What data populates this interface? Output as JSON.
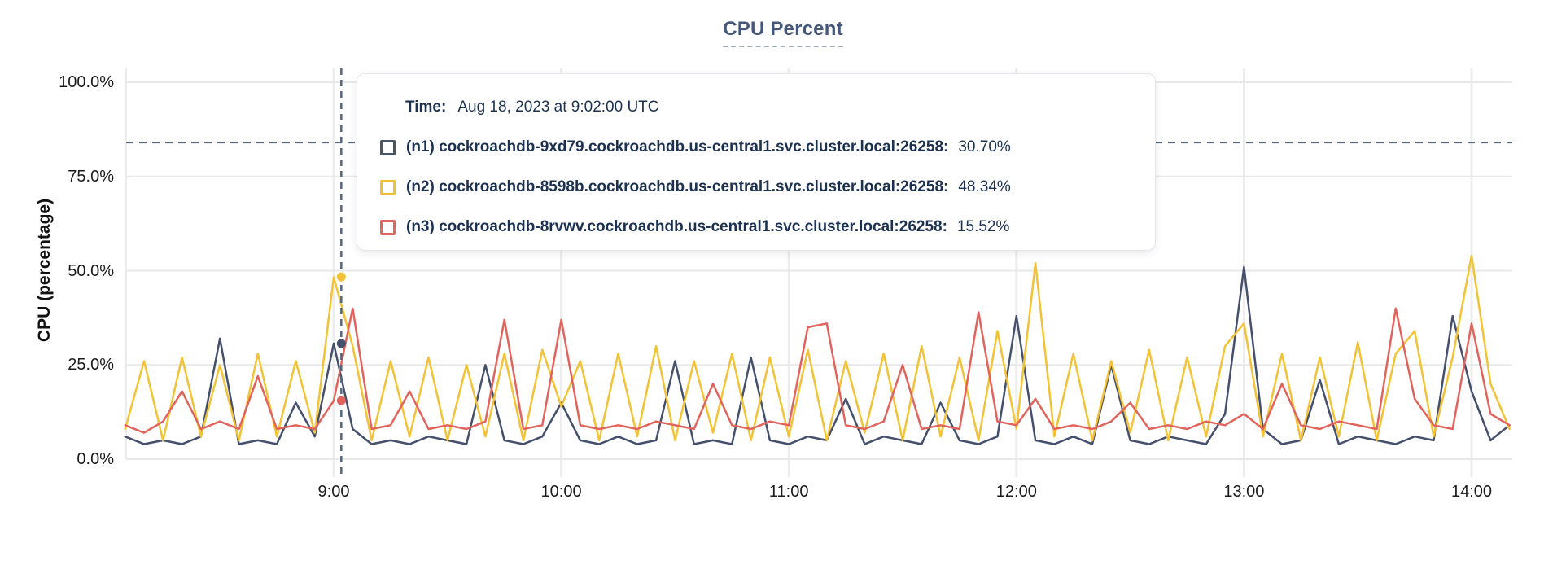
{
  "header": {
    "title": "CPU Percent"
  },
  "tooltip": {
    "time_key": "Time:",
    "time_value": "Aug 18, 2023 at 9:02:00 UTC",
    "rows": [
      {
        "label": "(n1) cockroachdb-9xd79.cockroachdb.us-central1.svc.cluster.local:26258:",
        "value": "30.70%",
        "color": "#4a5568"
      },
      {
        "label": "(n2) cockroachdb-8598b.cockroachdb.us-central1.svc.cluster.local:26258:",
        "value": "48.34%",
        "color": "#f0c135"
      },
      {
        "label": "(n3) cockroachdb-8rvwv.cockroachdb.us-central1.svc.cluster.local:26258:",
        "value": "15.52%",
        "color": "#e0685e"
      }
    ]
  },
  "colors": {
    "grid_h": "#e8e8e8",
    "grid_v": "#ededed",
    "dashed_guides": "#54677b",
    "title": "#46587a"
  },
  "chart_data": {
    "type": "line",
    "title": "CPU Percent",
    "xlabel": "",
    "ylabel": "CPU (percentage)",
    "ylim": [
      0,
      100
    ],
    "grid": true,
    "legend_position": "tooltip-overlay",
    "threshold_pct": 84,
    "y_ticks": [
      {
        "label": "0.0%",
        "pct": 0
      },
      {
        "label": "25.0%",
        "pct": 25
      },
      {
        "label": "50.0%",
        "pct": 50
      },
      {
        "label": "75.0%",
        "pct": 75
      },
      {
        "label": "100.0%",
        "pct": 100
      }
    ],
    "x_ticks": [
      {
        "label": "9:00",
        "minutes": 540
      },
      {
        "label": "10:00",
        "minutes": 600
      },
      {
        "label": "11:00",
        "minutes": 660
      },
      {
        "label": "12:00",
        "minutes": 720
      },
      {
        "label": "13:00",
        "minutes": 780
      },
      {
        "label": "14:00",
        "minutes": 840
      }
    ],
    "x_minutes": [
      485,
      490,
      495,
      500,
      505,
      510,
      515,
      520,
      525,
      530,
      535,
      540,
      545,
      550,
      555,
      560,
      565,
      570,
      575,
      580,
      585,
      590,
      595,
      600,
      605,
      610,
      615,
      620,
      625,
      630,
      635,
      640,
      645,
      650,
      655,
      660,
      665,
      670,
      675,
      680,
      685,
      690,
      695,
      700,
      705,
      710,
      715,
      720,
      725,
      730,
      735,
      740,
      745,
      750,
      755,
      760,
      765,
      770,
      775,
      780,
      785,
      790,
      795,
      800,
      805,
      810,
      815,
      820,
      825,
      830,
      835,
      840,
      845,
      850
    ],
    "series": [
      {
        "id": "n1",
        "name": "(n1) cockroachdb-9xd79.cockroachdb.us-central1.svc.cluster.local:26258",
        "color": "#44506c",
        "values": [
          6,
          4,
          5,
          4,
          6,
          32,
          4,
          5,
          4,
          15,
          6,
          30.7,
          8,
          4,
          5,
          4,
          6,
          5,
          4,
          25,
          5,
          4,
          6,
          15,
          5,
          4,
          6,
          4,
          5,
          26,
          4,
          5,
          4,
          27,
          5,
          4,
          6,
          5,
          16,
          4,
          6,
          5,
          4,
          15,
          5,
          4,
          6,
          38,
          5,
          4,
          6,
          4,
          25,
          5,
          4,
          6,
          5,
          4,
          12,
          51,
          8,
          4,
          5,
          21,
          4,
          6,
          5,
          4,
          6,
          5,
          38,
          18,
          5,
          9
        ]
      },
      {
        "id": "n2",
        "name": "(n2) cockroachdb-8598b.cockroachdb.us-central1.svc.cluster.local:26258",
        "color": "#f3c235",
        "values": [
          8,
          26,
          5,
          27,
          6,
          25,
          5,
          28,
          6,
          26,
          7,
          48.3,
          30,
          5,
          26,
          6,
          27,
          5,
          25,
          6,
          28,
          5,
          29,
          14,
          26,
          5,
          28,
          6,
          30,
          5,
          26,
          7,
          28,
          5,
          27,
          6,
          29,
          5,
          26,
          7,
          28,
          5,
          30,
          6,
          27,
          5,
          34,
          8,
          52,
          6,
          28,
          5,
          26,
          7,
          29,
          5,
          27,
          6,
          30,
          36,
          6,
          28,
          5,
          27,
          6,
          31,
          5,
          28,
          34,
          6,
          27,
          54,
          20,
          8
        ]
      },
      {
        "id": "n3",
        "name": "(n3) cockroachdb-8rvwv.cockroachdb.us-central1.svc.cluster.local:26258",
        "color": "#e2635c",
        "values": [
          9,
          7,
          10,
          18,
          8,
          10,
          8,
          22,
          8,
          9,
          8,
          15.5,
          40,
          8,
          9,
          18,
          8,
          9,
          8,
          10,
          37,
          8,
          9,
          37,
          9,
          8,
          9,
          8,
          10,
          9,
          8,
          20,
          9,
          8,
          10,
          9,
          35,
          36,
          9,
          8,
          10,
          25,
          8,
          9,
          8,
          39,
          10,
          9,
          16,
          8,
          9,
          8,
          10,
          15,
          8,
          9,
          8,
          10,
          9,
          12,
          8,
          20,
          9,
          8,
          10,
          9,
          8,
          40,
          16,
          9,
          8,
          36,
          12,
          9
        ]
      }
    ],
    "hover": {
      "minutes": 542,
      "time_label": "Aug 18, 2023 at 9:02:00 UTC",
      "values": {
        "n1": 30.7,
        "n2": 48.34,
        "n3": 15.52
      }
    }
  }
}
